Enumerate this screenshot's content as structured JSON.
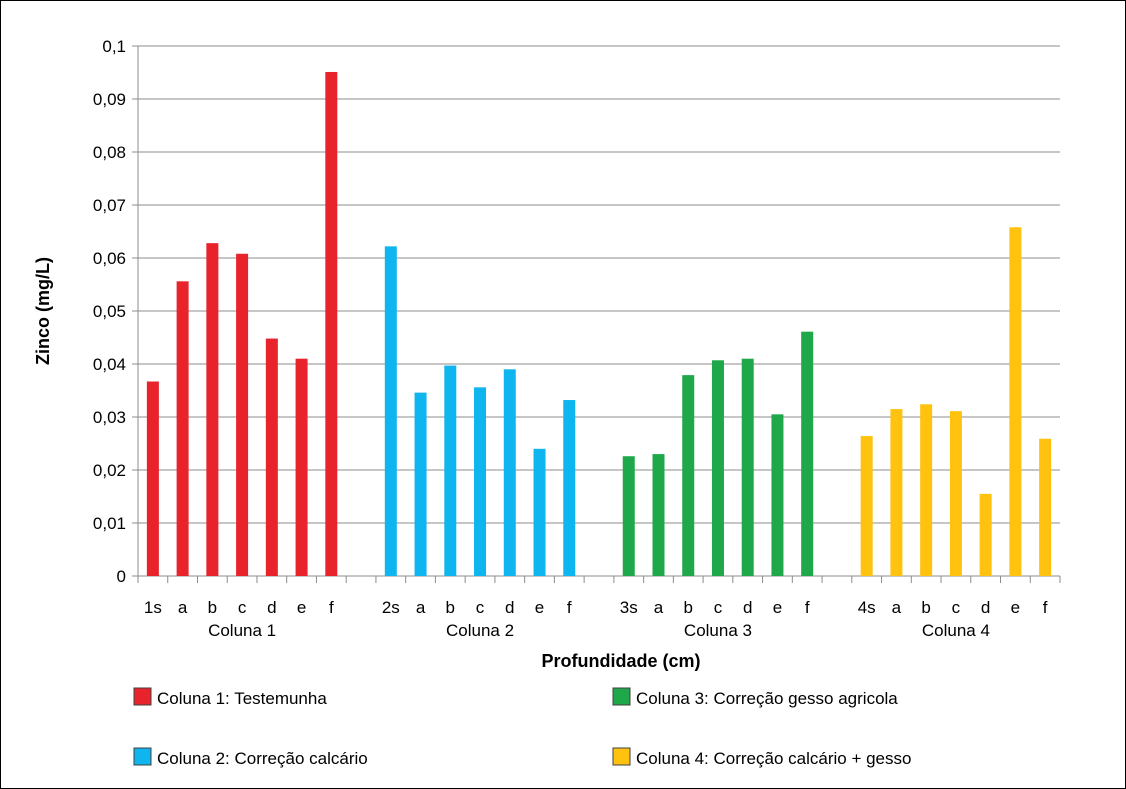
{
  "chart_data": {
    "type": "bar",
    "title": "",
    "xlabel": "Profundidade (cm)",
    "ylabel": "Zinco (mg/L)",
    "ylim": [
      0,
      0.1
    ],
    "yticks": [
      "0",
      "0,01",
      "0,02",
      "0,03",
      "0,04",
      "0,05",
      "0,06",
      "0,07",
      "0,08",
      "0,09",
      "0,1"
    ],
    "grid": true,
    "legend_position": "bottom",
    "groups": [
      {
        "label": "Coluna 1",
        "legend": "Coluna 1: Testemunha",
        "color": "#e8232b",
        "categories": [
          "1s",
          "a",
          "b",
          "c",
          "d",
          "e",
          "f"
        ],
        "values": [
          0.0367,
          0.0556,
          0.0628,
          0.0608,
          0.0448,
          0.041,
          0.0951
        ]
      },
      {
        "label": "Coluna 2",
        "legend": "Coluna 2: Correção calcário",
        "color": "#0fb5ee",
        "categories": [
          "2s",
          "a",
          "b",
          "c",
          "d",
          "e",
          "f"
        ],
        "values": [
          0.0622,
          0.0346,
          0.0397,
          0.0356,
          0.039,
          0.024,
          0.0332
        ]
      },
      {
        "label": "Coluna 3",
        "legend": "Coluna 3: Correção gesso agricola",
        "color": "#1fa84a",
        "categories": [
          "3s",
          "a",
          "b",
          "c",
          "d",
          "e",
          "f"
        ],
        "values": [
          0.0226,
          0.023,
          0.0379,
          0.0407,
          0.041,
          0.0305,
          0.0461
        ]
      },
      {
        "label": "Coluna 4",
        "legend": "Coluna 4: Correção calcário + gesso",
        "color": "#ffc20e",
        "categories": [
          "4s",
          "a",
          "b",
          "c",
          "d",
          "e",
          "f"
        ],
        "values": [
          0.0264,
          0.0315,
          0.0324,
          0.0311,
          0.0155,
          0.0658,
          0.0259
        ]
      }
    ]
  }
}
